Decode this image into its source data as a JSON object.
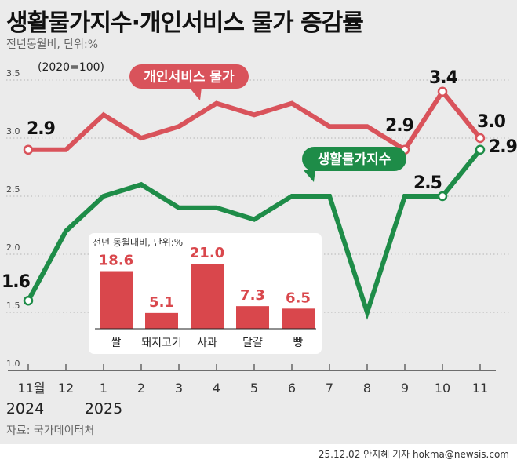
{
  "title": "생활물가지수·개인서비스 물가 증감률",
  "unit_note": "전년동월비, 단위:%",
  "base_note": "(2020=100)",
  "source": "자료: 국가데이터처",
  "credit": "25.12.02 안지혜 기자 hokma@newsis.com",
  "chart_data": [
    {
      "type": "line",
      "x": [
        "11월",
        "12",
        "1",
        "2",
        "3",
        "4",
        "5",
        "6",
        "7",
        "8",
        "9",
        "10",
        "11"
      ],
      "year_labels": [
        {
          "at": "11월",
          "label": "2024"
        },
        {
          "at": "1",
          "label": "2025"
        }
      ],
      "ylim": [
        1.0,
        3.5
      ],
      "yticks": [
        "1.0",
        "1.5",
        "2.0",
        "2.5",
        "3.0",
        "3.5"
      ],
      "grid": true,
      "series": [
        {
          "name": "개인서비스 물가",
          "color": "#d9535b",
          "values": [
            2.9,
            2.9,
            3.2,
            3.0,
            3.1,
            3.3,
            3.2,
            3.3,
            3.1,
            3.1,
            2.9,
            3.4,
            3.0
          ],
          "data_labels": [
            {
              "index": 0,
              "text": "2.9"
            },
            {
              "index": 10,
              "text": "2.9"
            },
            {
              "index": 11,
              "text": "3.4"
            },
            {
              "index": 12,
              "text": "3.0"
            }
          ]
        },
        {
          "name": "생활물가지수",
          "color": "#1e8c48",
          "values": [
            1.6,
            2.2,
            2.5,
            2.6,
            2.4,
            2.4,
            2.3,
            2.5,
            2.5,
            1.5,
            2.5,
            2.5,
            2.9
          ],
          "data_labels": [
            {
              "index": 0,
              "text": "1.6"
            },
            {
              "index": 11,
              "text": "2.5"
            },
            {
              "index": 12,
              "text": "2.9"
            }
          ]
        }
      ]
    },
    {
      "type": "bar",
      "title": "전년 동월대비, 단위:%",
      "categories": [
        "쌀",
        "돼지고기",
        "사과",
        "달걀",
        "빵"
      ],
      "values": [
        18.6,
        5.1,
        21.0,
        7.3,
        6.5
      ],
      "labels": [
        "18.6",
        "5.1",
        "21.0",
        "7.3",
        "6.5"
      ],
      "color": "#d9474c"
    }
  ]
}
